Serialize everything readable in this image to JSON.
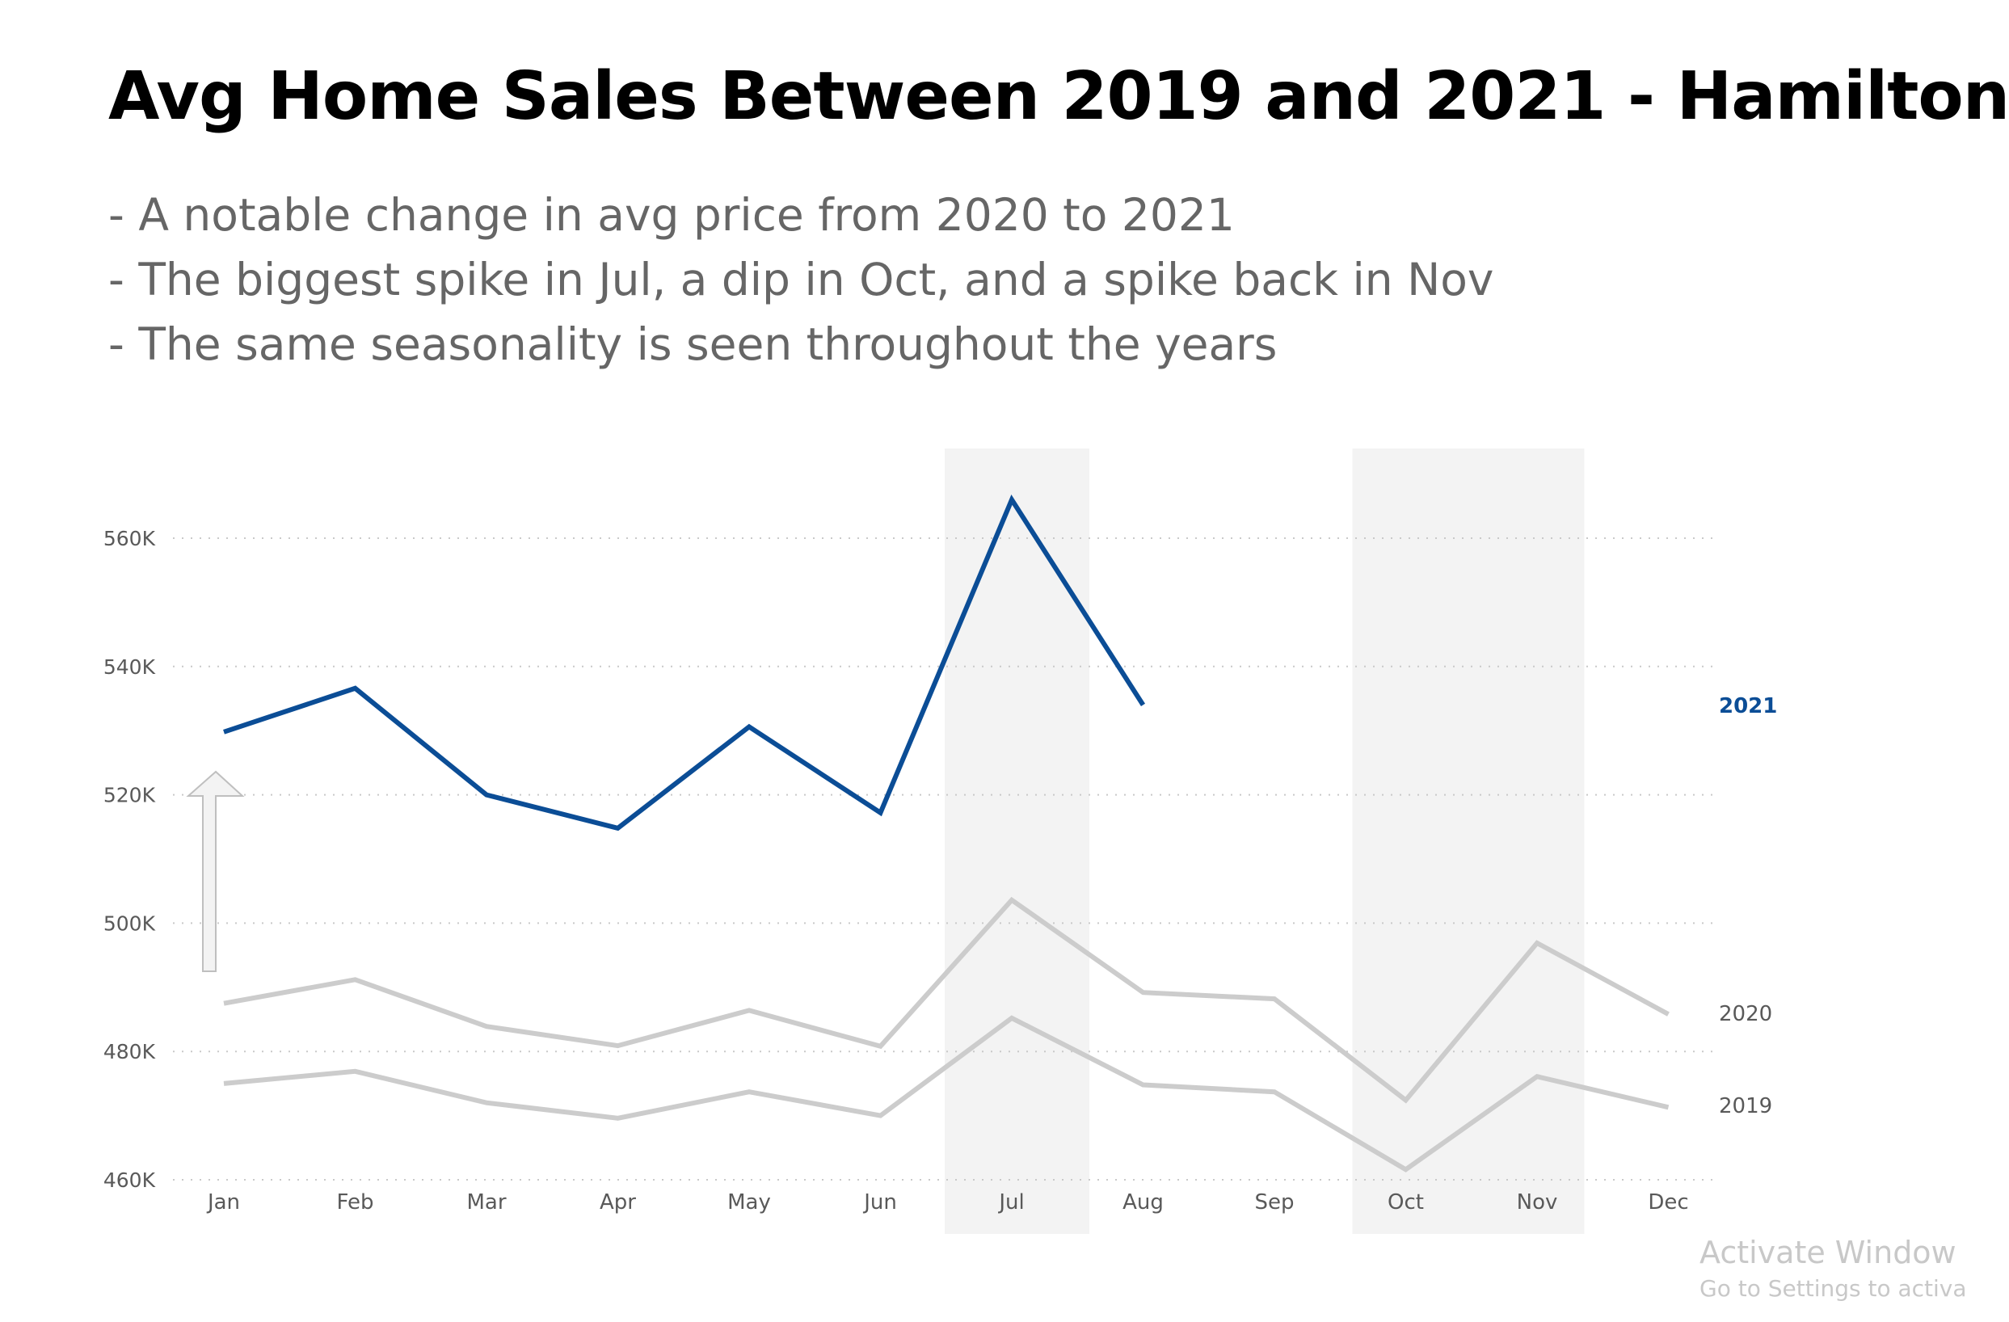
{
  "title": "Avg Home Sales Between 2019 and 2021 - Hamilton",
  "notes": [
    "- A notable change in avg price from 2020 to 2021",
    "- The biggest spike in Jul, a dip in Oct, and a spike back in Nov",
    "- The same seasonality is seen throughout the years"
  ],
  "watermark": {
    "line1": "Activate Window",
    "line2": "Go to Settings to activa"
  },
  "colors": {
    "highlight": "#0b4d96",
    "muted": "#cccccc",
    "band": "#f3f3f3",
    "axis_text": "#595959"
  },
  "chart_data": {
    "type": "line",
    "categories": [
      "Jan",
      "Feb",
      "Mar",
      "Apr",
      "May",
      "Jun",
      "Jul",
      "Aug",
      "Sep",
      "Oct",
      "Nov",
      "Dec"
    ],
    "ylim": [
      460000,
      568000
    ],
    "yticks": [
      460000,
      480000,
      500000,
      520000,
      540000,
      560000
    ],
    "ytick_labels": [
      "460K",
      "480K",
      "500K",
      "520K",
      "540K",
      "560K"
    ],
    "grid": true,
    "highlight_bands": [
      "Jul",
      "Oct-Nov"
    ],
    "annotation": "up-arrow",
    "series": [
      {
        "name": "2021",
        "values": [
          529800,
          536600,
          520000,
          514800,
          530600,
          517200,
          566000,
          534000,
          null,
          null,
          null,
          null
        ]
      },
      {
        "name": "2020",
        "values": [
          487500,
          491200,
          483900,
          480900,
          486400,
          480800,
          503600,
          489200,
          488200,
          472400,
          496900,
          485800
        ]
      },
      {
        "name": "2019",
        "values": [
          475000,
          476900,
          472000,
          469600,
          473700,
          470000,
          485200,
          474800,
          473700,
          461600,
          476100,
          471300
        ]
      }
    ]
  }
}
